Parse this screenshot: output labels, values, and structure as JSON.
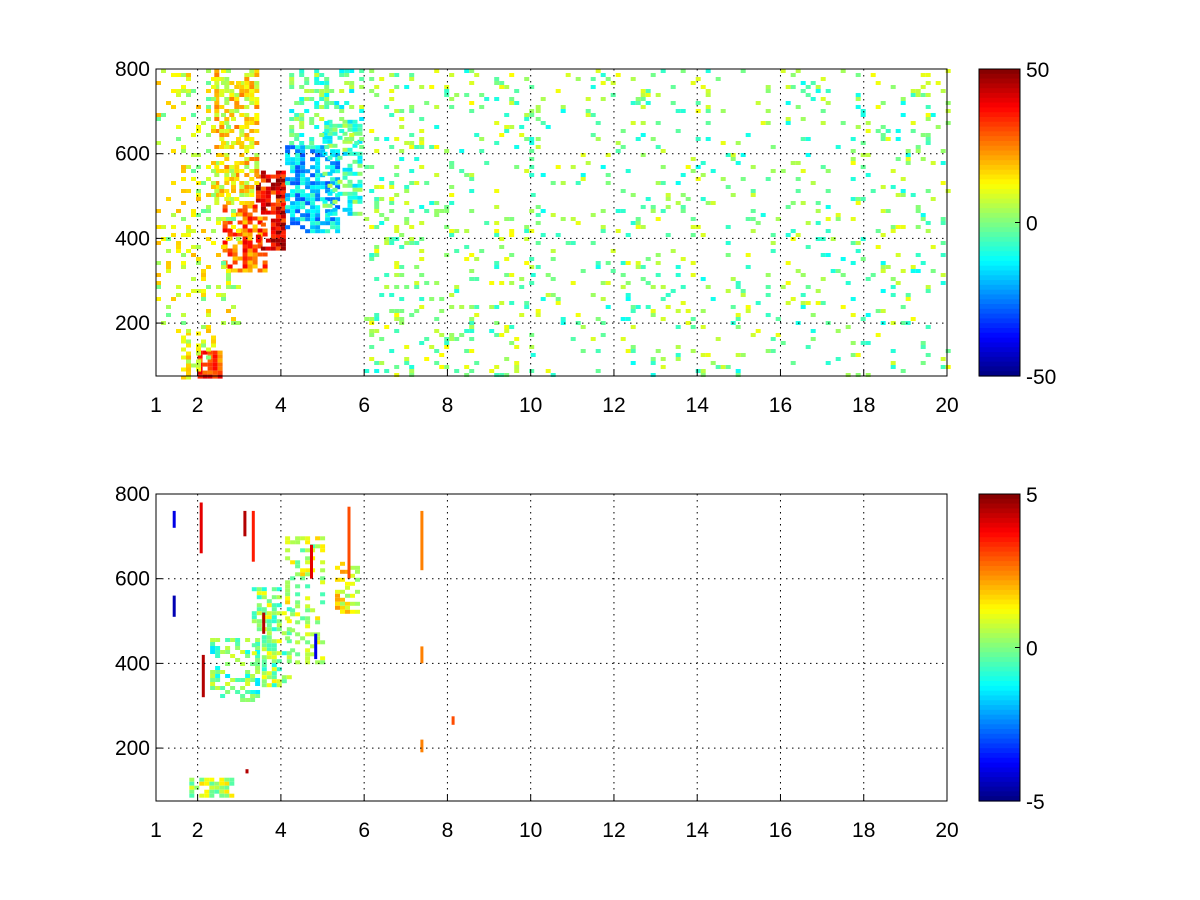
{
  "figure": {
    "background": "#ffffff",
    "colormap": "jet"
  },
  "chart_data": [
    {
      "type": "heatmap",
      "title": "",
      "xlabel": "",
      "ylabel": "",
      "xlim": [
        1,
        20
      ],
      "ylim": [
        75,
        800
      ],
      "xticks": [
        1,
        2,
        4,
        6,
        8,
        10,
        12,
        14,
        16,
        18,
        20
      ],
      "yticks": [
        200,
        400,
        600,
        800
      ],
      "grid": true,
      "colorbar": {
        "range": [
          -50,
          50
        ],
        "ticks": [
          50,
          0,
          -50
        ]
      },
      "regions": [
        {
          "x": [
            2.0,
            2.6
          ],
          "y": [
            75,
            135
          ],
          "value": 32,
          "density": 0.9
        },
        {
          "x": [
            1.6,
            2.4
          ],
          "y": [
            75,
            180
          ],
          "value": 10,
          "density": 0.5
        },
        {
          "x": [
            2.6,
            3.6
          ],
          "y": [
            320,
            480
          ],
          "value": 28,
          "density": 0.8
        },
        {
          "x": [
            3.4,
            4.1
          ],
          "y": [
            380,
            560
          ],
          "value": 38,
          "density": 0.85
        },
        {
          "x": [
            2.4,
            3.4
          ],
          "y": [
            480,
            800
          ],
          "value": 14,
          "density": 0.5
        },
        {
          "x": [
            4.1,
            5.4
          ],
          "y": [
            420,
            620
          ],
          "value": -18,
          "density": 0.7
        },
        {
          "x": [
            5.0,
            5.9
          ],
          "y": [
            460,
            680
          ],
          "value": -6,
          "density": 0.6
        },
        {
          "x": [
            4.2,
            6.0
          ],
          "y": [
            620,
            800
          ],
          "value": -3,
          "density": 0.35
        },
        {
          "x": [
            1.0,
            3.0
          ],
          "y": [
            180,
            800
          ],
          "value": 8,
          "density": 0.18
        },
        {
          "x": [
            6.0,
            10.0
          ],
          "y": [
            75,
            800
          ],
          "value": 1,
          "density": 0.13
        },
        {
          "x": [
            10.0,
            20.0
          ],
          "y": [
            75,
            800
          ],
          "value": 0,
          "density": 0.09
        }
      ]
    },
    {
      "type": "heatmap",
      "title": "",
      "xlabel": "",
      "ylabel": "",
      "xlim": [
        1,
        20
      ],
      "ylim": [
        75,
        800
      ],
      "xticks": [
        1,
        2,
        4,
        6,
        8,
        10,
        12,
        14,
        16,
        18,
        20
      ],
      "yticks": [
        200,
        400,
        600,
        800
      ],
      "grid": true,
      "colorbar": {
        "range": [
          -5,
          5
        ],
        "ticks": [
          5,
          0,
          -5
        ]
      },
      "regions": [
        {
          "x": [
            1.8,
            2.8
          ],
          "y": [
            90,
            130
          ],
          "value": 0.5,
          "density": 0.7
        },
        {
          "x": [
            2.3,
            3.5
          ],
          "y": [
            310,
            460
          ],
          "value": -0.3,
          "density": 0.45
        },
        {
          "x": [
            3.3,
            4.2
          ],
          "y": [
            350,
            580
          ],
          "value": 0.2,
          "density": 0.55
        },
        {
          "x": [
            4.1,
            5.0
          ],
          "y": [
            400,
            700
          ],
          "value": 0.6,
          "density": 0.4
        },
        {
          "x": [
            5.3,
            5.8
          ],
          "y": [
            520,
            640
          ],
          "value": 1.2,
          "density": 0.45
        }
      ],
      "streaks": [
        {
          "x": 1.4,
          "y": [
            720,
            760
          ],
          "value": -4
        },
        {
          "x": 1.4,
          "y": [
            510,
            560
          ],
          "value": -4.5
        },
        {
          "x": 2.05,
          "y": [
            660,
            780
          ],
          "value": 4
        },
        {
          "x": 2.1,
          "y": [
            320,
            420
          ],
          "value": 4.5
        },
        {
          "x": 3.1,
          "y": [
            700,
            760
          ],
          "value": 4.5
        },
        {
          "x": 3.3,
          "y": [
            640,
            760
          ],
          "value": 3.5
        },
        {
          "x": 3.55,
          "y": [
            470,
            520
          ],
          "value": 4.5
        },
        {
          "x": 4.7,
          "y": [
            600,
            680
          ],
          "value": 4
        },
        {
          "x": 4.8,
          "y": [
            410,
            470
          ],
          "value": -4
        },
        {
          "x": 5.6,
          "y": [
            600,
            770
          ],
          "value": 3
        },
        {
          "x": 7.35,
          "y": [
            620,
            760
          ],
          "value": 2.5
        },
        {
          "x": 7.35,
          "y": [
            400,
            440
          ],
          "value": 2.5
        },
        {
          "x": 7.35,
          "y": [
            190,
            220
          ],
          "value": 2.5
        },
        {
          "x": 8.1,
          "y": [
            255,
            275
          ],
          "value": 3
        },
        {
          "x": 3.15,
          "y": [
            140,
            150
          ],
          "value": 4.5
        }
      ]
    }
  ]
}
